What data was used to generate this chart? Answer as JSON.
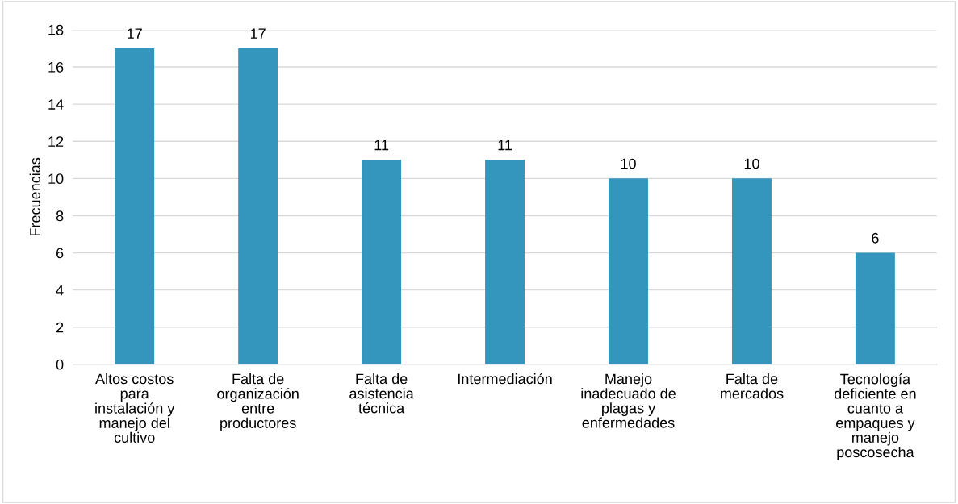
{
  "chart_data": {
    "type": "bar",
    "ylabel": "Frecuencias",
    "categories": [
      "Altos costos\npara\ninstalación y\nmanejo del\ncultivo",
      "Falta de\norganización\nentre\nproductores",
      "Falta de\nasistencia\ntécnica",
      "Intermediación",
      "Manejo\ninadecuado de\nplagas y\nenfermedades",
      "Falta de\nmercados",
      "Tecnología\ndeficiente en\ncuanto a\nempaques y\nmanejo\nposcosecha"
    ],
    "values": [
      17,
      17,
      11,
      11,
      10,
      10,
      6
    ],
    "color": "#3596bd",
    "ylim": [
      0,
      18
    ],
    "yticks": [
      0,
      2,
      4,
      6,
      8,
      10,
      12,
      14,
      16,
      18
    ],
    "grid": "y",
    "data_labels": true
  }
}
